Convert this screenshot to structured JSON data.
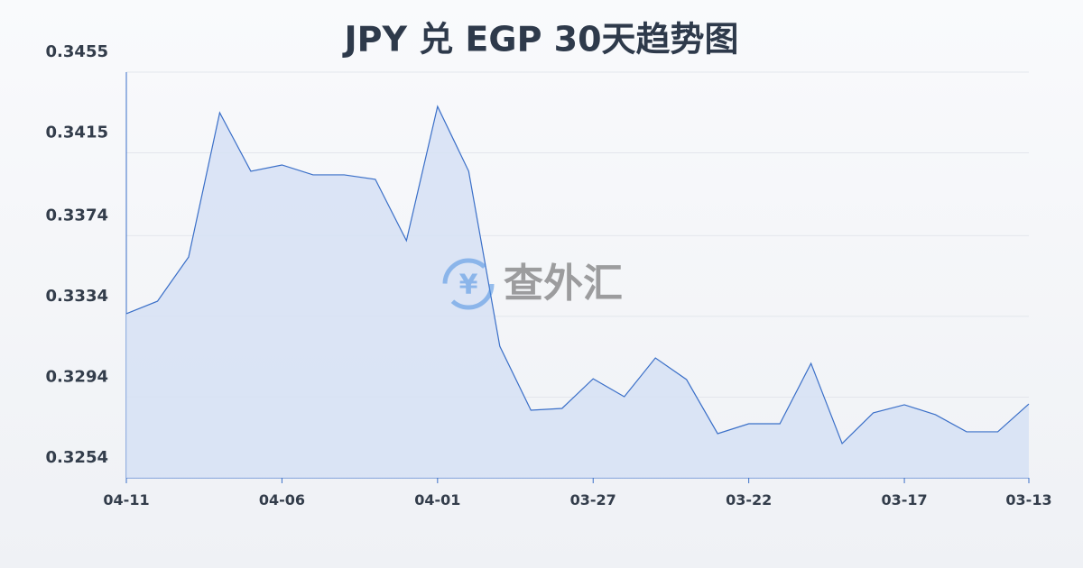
{
  "chart_data": {
    "type": "area",
    "title": "JPY 兑 EGP 30天趋势图",
    "watermark": "查外汇",
    "watermark_icon": "¥",
    "categories": [
      "04-11",
      null,
      null,
      null,
      null,
      "04-06",
      null,
      null,
      null,
      null,
      "04-01",
      null,
      null,
      null,
      null,
      "03-27",
      null,
      null,
      null,
      null,
      "03-22",
      null,
      null,
      null,
      null,
      "03-17",
      null,
      null,
      null,
      "03-13"
    ],
    "series": [
      {
        "name": "JPY/EGP",
        "color": "#3a6fc8",
        "fill": "#d6e0f5",
        "values": [
          0.33353,
          0.33415,
          0.33634,
          0.34349,
          0.34059,
          0.3409,
          0.34041,
          0.34041,
          0.34019,
          0.33715,
          0.3438,
          0.34059,
          0.33192,
          0.32875,
          0.32884,
          0.33031,
          0.32942,
          0.33134,
          0.33027,
          0.32759,
          0.32808,
          0.32808,
          0.33107,
          0.3271,
          0.32862,
          0.32902,
          0.32853,
          0.32768,
          0.32768,
          0.32906
        ]
      }
    ],
    "ylim": [
      0.3254,
      0.3455
    ],
    "yticks": [
      0.3254,
      0.3294,
      0.3334,
      0.3374,
      0.3415,
      0.3455
    ],
    "grid": true
  }
}
